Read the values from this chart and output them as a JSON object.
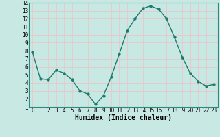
{
  "x": [
    0,
    1,
    2,
    3,
    4,
    5,
    6,
    7,
    8,
    9,
    10,
    11,
    12,
    13,
    14,
    15,
    16,
    17,
    18,
    19,
    20,
    21,
    22,
    23
  ],
  "y": [
    7.8,
    4.5,
    4.4,
    5.6,
    5.2,
    4.4,
    3.0,
    2.6,
    1.3,
    2.4,
    4.8,
    7.6,
    10.5,
    12.0,
    13.3,
    13.6,
    13.2,
    12.0,
    9.7,
    7.2,
    5.2,
    4.2,
    3.6,
    3.8
  ],
  "xlabel": "Humidex (Indice chaleur)",
  "xlim": [
    -0.5,
    23.5
  ],
  "ylim": [
    1,
    14
  ],
  "yticks": [
    1,
    2,
    3,
    4,
    5,
    6,
    7,
    8,
    9,
    10,
    11,
    12,
    13,
    14
  ],
  "xticks": [
    0,
    1,
    2,
    3,
    4,
    5,
    6,
    7,
    8,
    9,
    10,
    11,
    12,
    13,
    14,
    15,
    16,
    17,
    18,
    19,
    20,
    21,
    22,
    23
  ],
  "line_color": "#1a7a6e",
  "marker_color": "#1a7a6e",
  "bg_color": "#c8e8e4",
  "grid_color": "#e8c8c8",
  "xlabel_fontsize": 7,
  "tick_fontsize": 5.5,
  "line_width": 1.0,
  "marker_size": 2.5
}
